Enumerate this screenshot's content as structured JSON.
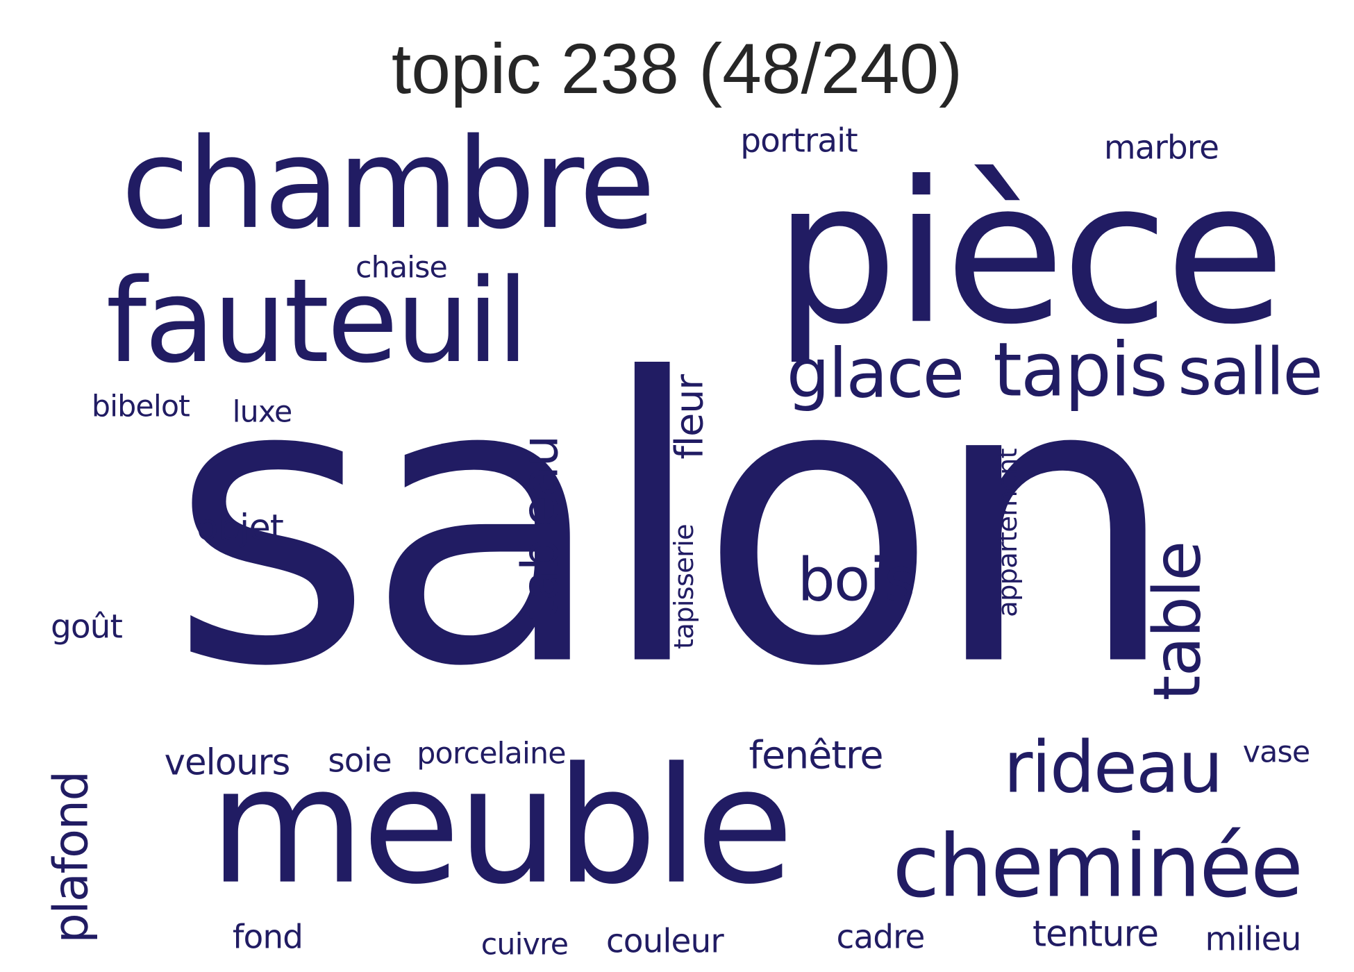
{
  "title": "topic 238 (48/240)",
  "color": "#211C63",
  "words": [
    {
      "text": "salon",
      "rotated": false
    },
    {
      "text": "meuble",
      "rotated": false
    },
    {
      "text": "pièce",
      "rotated": false
    },
    {
      "text": "chambre",
      "rotated": false
    },
    {
      "text": "fauteuil",
      "rotated": false
    },
    {
      "text": "cheminée",
      "rotated": false
    },
    {
      "text": "tapis",
      "rotated": false
    },
    {
      "text": "glace",
      "rotated": false
    },
    {
      "text": "salle",
      "rotated": false
    },
    {
      "text": "rideau",
      "rotated": false
    },
    {
      "text": "table",
      "rotated": true
    },
    {
      "text": "tableau",
      "rotated": true
    },
    {
      "text": "bois",
      "rotated": false
    },
    {
      "text": "fleur",
      "rotated": true
    },
    {
      "text": "plafond",
      "rotated": true
    },
    {
      "text": "appartement",
      "rotated": true
    },
    {
      "text": "tapisserie",
      "rotated": true
    },
    {
      "text": "portrait",
      "rotated": false
    },
    {
      "text": "marbre",
      "rotated": false
    },
    {
      "text": "chaise",
      "rotated": false
    },
    {
      "text": "objet",
      "rotated": false
    },
    {
      "text": "velours",
      "rotated": false
    },
    {
      "text": "soie",
      "rotated": false
    },
    {
      "text": "porcelaine",
      "rotated": false
    },
    {
      "text": "fenêtre",
      "rotated": false
    },
    {
      "text": "vase",
      "rotated": false
    },
    {
      "text": "fond",
      "rotated": false
    },
    {
      "text": "couleur",
      "rotated": false
    },
    {
      "text": "cadre",
      "rotated": false
    },
    {
      "text": "tenture",
      "rotated": false
    },
    {
      "text": "milieu",
      "rotated": false
    },
    {
      "text": "cuivre",
      "rotated": false
    },
    {
      "text": "bibelot",
      "rotated": false
    },
    {
      "text": "luxe",
      "rotated": false
    },
    {
      "text": "goût",
      "rotated": false
    }
  ]
}
